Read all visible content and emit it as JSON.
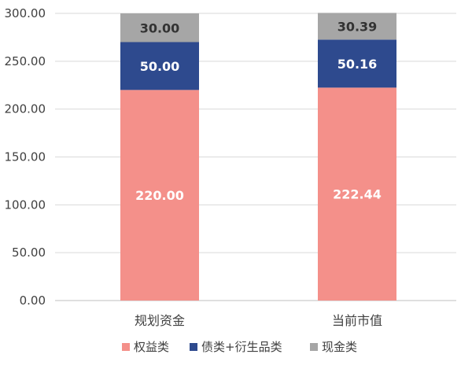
{
  "chart_data": {
    "type": "bar",
    "stacked": true,
    "categories": [
      "规划资金",
      "当前市值"
    ],
    "series": [
      {
        "name": "权益类",
        "values": [
          220.0,
          222.44
        ],
        "color": "#f4908a",
        "label_color": "#ffffff"
      },
      {
        "name": "债类+衍生品类",
        "values": [
          50.0,
          50.16
        ],
        "color": "#2e4a8e",
        "label_color": "#ffffff"
      },
      {
        "name": "现金类",
        "values": [
          30.0,
          30.39
        ],
        "color": "#a6a6a6",
        "label_color": "#333333"
      }
    ],
    "data_labels": [
      [
        "220.00",
        "222.44"
      ],
      [
        "50.00",
        "50.16"
      ],
      [
        "30.00",
        "30.39"
      ]
    ],
    "yticks": [
      "0.00",
      "50.00",
      "100.00",
      "150.00",
      "200.00",
      "250.00",
      "300.00"
    ],
    "ylim": [
      0,
      300
    ],
    "grid": true,
    "legend_position": "bottom",
    "title": "",
    "xlabel": "",
    "ylabel": ""
  }
}
